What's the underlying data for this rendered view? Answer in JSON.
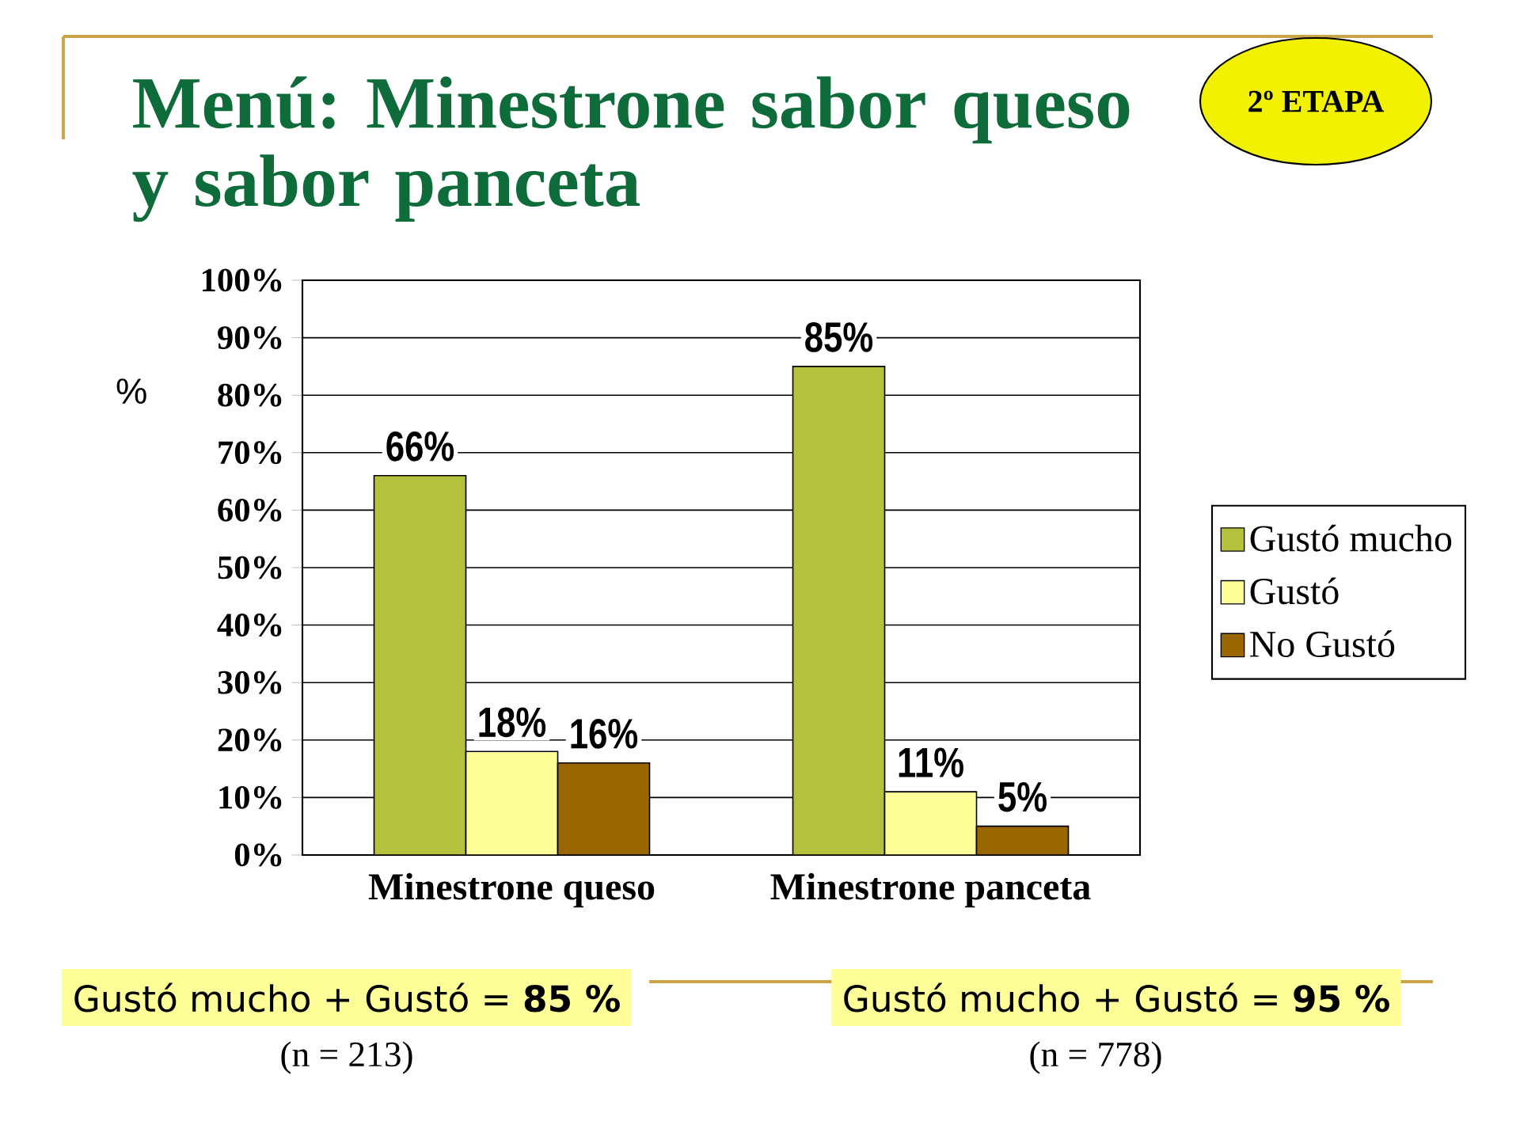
{
  "chart_data": {
    "type": "bar",
    "title": "Menú: Minestrone sabor queso y sabor panceta",
    "ylabel": "%",
    "categories": [
      "Minestrone queso",
      "Minestrone panceta"
    ],
    "series": [
      {
        "name": "Gustó mucho",
        "color": "#b3c13c",
        "values": [
          66,
          85
        ],
        "value_labels": [
          "66%",
          "85%"
        ]
      },
      {
        "name": "Gustó",
        "color": "#ffff99",
        "values": [
          18,
          11
        ],
        "value_labels": [
          "18%",
          "11%"
        ]
      },
      {
        "name": "No Gustó",
        "color": "#996600",
        "values": [
          16,
          5
        ],
        "value_labels": [
          "16%",
          "5%"
        ]
      }
    ],
    "ylim": [
      0,
      100
    ],
    "yticks": [
      {
        "value": 0,
        "label": "0%"
      },
      {
        "value": 10,
        "label": "10%"
      },
      {
        "value": 20,
        "label": "20%"
      },
      {
        "value": 30,
        "label": "30%"
      },
      {
        "value": 40,
        "label": "40%"
      },
      {
        "value": 50,
        "label": "50%"
      },
      {
        "value": 60,
        "label": "60%"
      },
      {
        "value": 70,
        "label": "70%"
      },
      {
        "value": 80,
        "label": "80%"
      },
      {
        "value": 90,
        "label": "90%"
      },
      {
        "value": 100,
        "label": "100%"
      }
    ],
    "grid": "y",
    "legend": "right",
    "annotations": [
      "2º ETAPA",
      "Gustó mucho + Gustó = **85 %**",
      "Gustó mucho + Gustó = **95 %**",
      "(n = 213)",
      "(n = 778)"
    ]
  }
}
